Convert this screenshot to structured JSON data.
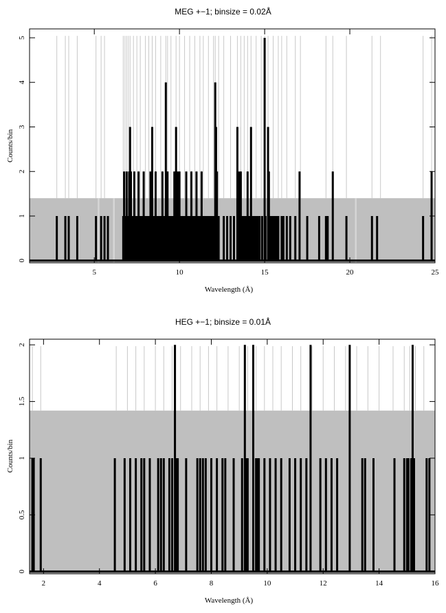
{
  "chart_data": [
    {
      "type": "histogram",
      "title": "MEG +−1; binsize = 0.02Å",
      "xlabel": "Wavelength (Å)",
      "ylabel": "Counts/bin",
      "xlim": [
        1.2,
        25
      ],
      "ylim": [
        -0.05,
        5.2
      ],
      "xticks": [
        5,
        10,
        15,
        20,
        25
      ],
      "yticks": [
        0,
        1,
        2,
        3,
        4,
        5
      ],
      "background_level": 1.4,
      "background_gaps": [
        [
          5.2,
          5.3
        ],
        [
          6.1,
          6.2
        ],
        [
          20.3,
          20.4
        ]
      ],
      "counts": [
        [
          2.8,
          1
        ],
        [
          3.3,
          1
        ],
        [
          3.5,
          1
        ],
        [
          4.0,
          1
        ],
        [
          5.1,
          1
        ],
        [
          5.4,
          1
        ],
        [
          5.6,
          1
        ],
        [
          5.8,
          1
        ],
        [
          6.7,
          1
        ],
        [
          6.75,
          2
        ],
        [
          6.8,
          1
        ],
        [
          6.9,
          2
        ],
        [
          7.0,
          1
        ],
        [
          7.05,
          2
        ],
        [
          7.1,
          3
        ],
        [
          7.15,
          2
        ],
        [
          7.2,
          1
        ],
        [
          7.3,
          1
        ],
        [
          7.35,
          2
        ],
        [
          7.4,
          1
        ],
        [
          7.5,
          1
        ],
        [
          7.6,
          2
        ],
        [
          7.65,
          1
        ],
        [
          7.7,
          1
        ],
        [
          7.8,
          1
        ],
        [
          7.9,
          2
        ],
        [
          8.0,
          1
        ],
        [
          8.1,
          1
        ],
        [
          8.2,
          1
        ],
        [
          8.3,
          2
        ],
        [
          8.4,
          3
        ],
        [
          8.5,
          1
        ],
        [
          8.6,
          2
        ],
        [
          8.7,
          1
        ],
        [
          8.8,
          1
        ],
        [
          8.9,
          1
        ],
        [
          9.0,
          2
        ],
        [
          9.1,
          1
        ],
        [
          9.2,
          4
        ],
        [
          9.3,
          2
        ],
        [
          9.4,
          1
        ],
        [
          9.5,
          1
        ],
        [
          9.6,
          1
        ],
        [
          9.7,
          2
        ],
        [
          9.8,
          3
        ],
        [
          9.85,
          1
        ],
        [
          9.9,
          2
        ],
        [
          10.0,
          2
        ],
        [
          10.1,
          1
        ],
        [
          10.2,
          1
        ],
        [
          10.3,
          1
        ],
        [
          10.4,
          2
        ],
        [
          10.5,
          1
        ],
        [
          10.6,
          1
        ],
        [
          10.7,
          2
        ],
        [
          10.8,
          1
        ],
        [
          10.9,
          1
        ],
        [
          11.0,
          2
        ],
        [
          11.1,
          1
        ],
        [
          11.2,
          1
        ],
        [
          11.3,
          2
        ],
        [
          11.4,
          1
        ],
        [
          11.5,
          1
        ],
        [
          11.6,
          1
        ],
        [
          11.7,
          1
        ],
        [
          11.8,
          1
        ],
        [
          11.9,
          1
        ],
        [
          12.0,
          1
        ],
        [
          12.1,
          4
        ],
        [
          12.15,
          3
        ],
        [
          12.2,
          2
        ],
        [
          12.3,
          1
        ],
        [
          12.6,
          1
        ],
        [
          12.8,
          1
        ],
        [
          13.0,
          1
        ],
        [
          13.2,
          1
        ],
        [
          13.4,
          3
        ],
        [
          13.45,
          1
        ],
        [
          13.5,
          2
        ],
        [
          13.6,
          2
        ],
        [
          13.7,
          1
        ],
        [
          13.8,
          1
        ],
        [
          13.9,
          1
        ],
        [
          14.0,
          2
        ],
        [
          14.1,
          1
        ],
        [
          14.2,
          3
        ],
        [
          14.3,
          1
        ],
        [
          14.4,
          1
        ],
        [
          14.5,
          1
        ],
        [
          14.6,
          1
        ],
        [
          14.7,
          1
        ],
        [
          14.85,
          1
        ],
        [
          15.0,
          5
        ],
        [
          15.05,
          1
        ],
        [
          15.2,
          3
        ],
        [
          15.25,
          2
        ],
        [
          15.3,
          1
        ],
        [
          15.4,
          1
        ],
        [
          15.5,
          1
        ],
        [
          15.6,
          1
        ],
        [
          15.7,
          1
        ],
        [
          15.8,
          1
        ],
        [
          16.0,
          1
        ],
        [
          16.1,
          1
        ],
        [
          16.3,
          1
        ],
        [
          16.5,
          1
        ],
        [
          16.8,
          1
        ],
        [
          17.05,
          2
        ],
        [
          17.5,
          1
        ],
        [
          18.2,
          1
        ],
        [
          18.6,
          1
        ],
        [
          18.7,
          1
        ],
        [
          19.0,
          2
        ],
        [
          19.8,
          1
        ],
        [
          21.3,
          1
        ],
        [
          21.6,
          1
        ],
        [
          24.3,
          1
        ],
        [
          24.8,
          2
        ]
      ],
      "model_lines": [
        2.8,
        3.3,
        3.5,
        4.0,
        5.1,
        5.4,
        5.6,
        6.7,
        6.8,
        6.9,
        7.0,
        7.1,
        7.3,
        7.5,
        7.7,
        8.0,
        8.2,
        8.4,
        8.6,
        8.9,
        9.2,
        9.3,
        9.5,
        9.8,
        10.0,
        10.3,
        10.6,
        10.9,
        11.2,
        11.4,
        11.7,
        12.0,
        12.1,
        12.3,
        12.6,
        13.0,
        13.4,
        13.6,
        13.8,
        14.0,
        14.2,
        14.5,
        14.8,
        15.0,
        15.2,
        15.5,
        15.8,
        16.0,
        16.3,
        16.8,
        17.1,
        18.6,
        19.0,
        19.8,
        21.3,
        21.8,
        24.3,
        24.8
      ]
    },
    {
      "type": "histogram",
      "title": "HEG +−1; binsize = 0.01Å",
      "xlabel": "Wavelength (Å)",
      "ylabel": "Counts/bin",
      "xlim": [
        1.5,
        16
      ],
      "ylim": [
        -0.02,
        2.05
      ],
      "xticks": [
        2,
        4,
        6,
        8,
        10,
        12,
        14,
        16
      ],
      "yticks": [
        0,
        0.5,
        1,
        1.5,
        2
      ],
      "background_level": 1.42,
      "background_gaps": [],
      "counts": [
        [
          1.6,
          1
        ],
        [
          1.65,
          1
        ],
        [
          1.9,
          1
        ],
        [
          4.55,
          1
        ],
        [
          4.9,
          1
        ],
        [
          5.1,
          1
        ],
        [
          5.3,
          1
        ],
        [
          5.5,
          1
        ],
        [
          5.6,
          1
        ],
        [
          5.8,
          1
        ],
        [
          6.1,
          1
        ],
        [
          6.2,
          1
        ],
        [
          6.3,
          1
        ],
        [
          6.5,
          1
        ],
        [
          6.6,
          1
        ],
        [
          6.7,
          2
        ],
        [
          6.75,
          1
        ],
        [
          6.8,
          1
        ],
        [
          7.1,
          1
        ],
        [
          7.5,
          1
        ],
        [
          7.6,
          1
        ],
        [
          7.7,
          1
        ],
        [
          7.8,
          1
        ],
        [
          8.0,
          1
        ],
        [
          8.2,
          1
        ],
        [
          8.4,
          1
        ],
        [
          8.5,
          1
        ],
        [
          8.8,
          1
        ],
        [
          9.1,
          1
        ],
        [
          9.2,
          2
        ],
        [
          9.25,
          1
        ],
        [
          9.3,
          1
        ],
        [
          9.5,
          2
        ],
        [
          9.6,
          1
        ],
        [
          9.65,
          1
        ],
        [
          9.7,
          1
        ],
        [
          9.9,
          1
        ],
        [
          10.1,
          1
        ],
        [
          10.3,
          1
        ],
        [
          10.5,
          1
        ],
        [
          10.8,
          1
        ],
        [
          11.0,
          1
        ],
        [
          11.2,
          1
        ],
        [
          11.4,
          1
        ],
        [
          11.55,
          2
        ],
        [
          11.9,
          1
        ],
        [
          12.1,
          1
        ],
        [
          12.3,
          1
        ],
        [
          12.5,
          1
        ],
        [
          12.95,
          2
        ],
        [
          13.4,
          1
        ],
        [
          13.5,
          1
        ],
        [
          13.8,
          1
        ],
        [
          14.55,
          1
        ],
        [
          14.9,
          1
        ],
        [
          15.0,
          1
        ],
        [
          15.05,
          1
        ],
        [
          15.15,
          1
        ],
        [
          15.2,
          2
        ],
        [
          15.25,
          1
        ],
        [
          15.7,
          1
        ],
        [
          15.8,
          1
        ]
      ],
      "model_lines": [
        1.6,
        1.9,
        4.6,
        5.0,
        5.3,
        5.6,
        6.0,
        6.3,
        6.6,
        6.9,
        7.3,
        7.6,
        7.9,
        8.2,
        8.6,
        9.0,
        9.3,
        9.6,
        9.9,
        10.2,
        10.5,
        10.9,
        11.2,
        11.6,
        12.0,
        12.4,
        12.8,
        13.2,
        13.6,
        14.0,
        14.5,
        14.9,
        15.1,
        15.3,
        15.6
      ]
    }
  ]
}
